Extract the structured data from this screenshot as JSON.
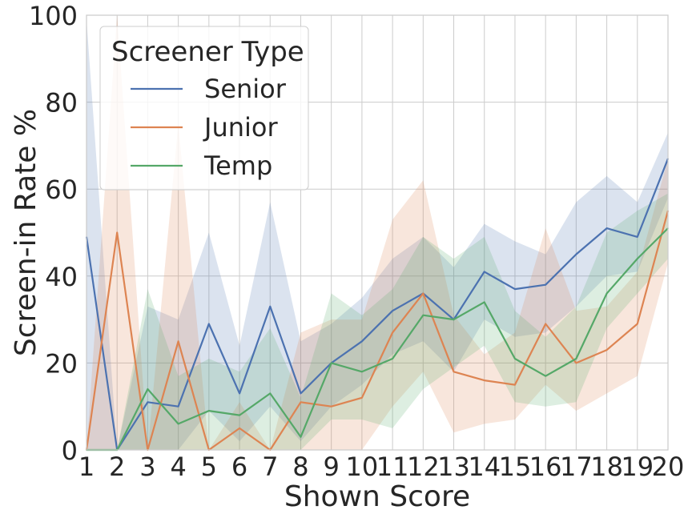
{
  "chart_data": {
    "type": "line",
    "xlabel": "Shown Score",
    "ylabel": "Screen-in Rate %",
    "x": [
      1,
      2,
      3,
      4,
      5,
      6,
      7,
      8,
      9,
      10,
      11,
      12,
      13,
      14,
      15,
      16,
      17,
      18,
      19,
      20
    ],
    "xlim": [
      1,
      20
    ],
    "ylim": [
      0,
      100
    ],
    "yticks": [
      0,
      20,
      40,
      60,
      80,
      100
    ],
    "grid": true,
    "legend": {
      "title": "Screener Type",
      "placement": "top-left"
    },
    "series": [
      {
        "name": "Senior",
        "color": "#4c72b0",
        "values": [
          49,
          0,
          11,
          10,
          29,
          13,
          33,
          13,
          20,
          25,
          32,
          36,
          30,
          41,
          37,
          38,
          45,
          51,
          49,
          67
        ],
        "ci_low": [
          0,
          0,
          0,
          0,
          9,
          2,
          10,
          2,
          10,
          15,
          22,
          25,
          18,
          30,
          26,
          27,
          33,
          40,
          41,
          58
        ],
        "ci_high": [
          99,
          0,
          33,
          30,
          50,
          24,
          57,
          25,
          29,
          35,
          44,
          49,
          42,
          52,
          48,
          45,
          57,
          63,
          57,
          73
        ]
      },
      {
        "name": "Junior",
        "color": "#dd8452",
        "values": [
          0,
          50,
          0,
          25,
          0,
          5,
          0,
          11,
          10,
          12,
          27,
          36,
          18,
          16,
          15,
          29,
          20,
          23,
          29,
          55
        ],
        "ci_low": [
          0,
          0,
          0,
          0,
          0,
          0,
          0,
          0,
          0,
          0,
          10,
          18,
          4,
          6,
          7,
          15,
          9,
          13,
          17,
          43
        ],
        "ci_high": [
          0,
          100,
          0,
          75,
          0,
          11,
          0,
          27,
          30,
          30,
          53,
          62,
          31,
          22,
          27,
          51,
          32,
          33,
          41,
          67
        ]
      },
      {
        "name": "Temp",
        "color": "#55a868",
        "values": [
          0,
          0,
          14,
          6,
          9,
          8,
          13,
          3,
          20,
          18,
          21,
          31,
          30,
          34,
          21,
          17,
          21,
          36,
          44,
          51
        ],
        "ci_low": [
          0,
          0,
          0,
          0,
          0,
          0,
          0,
          0,
          7,
          7,
          5,
          14,
          19,
          24,
          11,
          10,
          11,
          28,
          36,
          44
        ],
        "ci_high": [
          0,
          0,
          37,
          17,
          21,
          18,
          28,
          12,
          36,
          31,
          37,
          49,
          44,
          49,
          32,
          26,
          33,
          50,
          55,
          59
        ]
      }
    ]
  }
}
